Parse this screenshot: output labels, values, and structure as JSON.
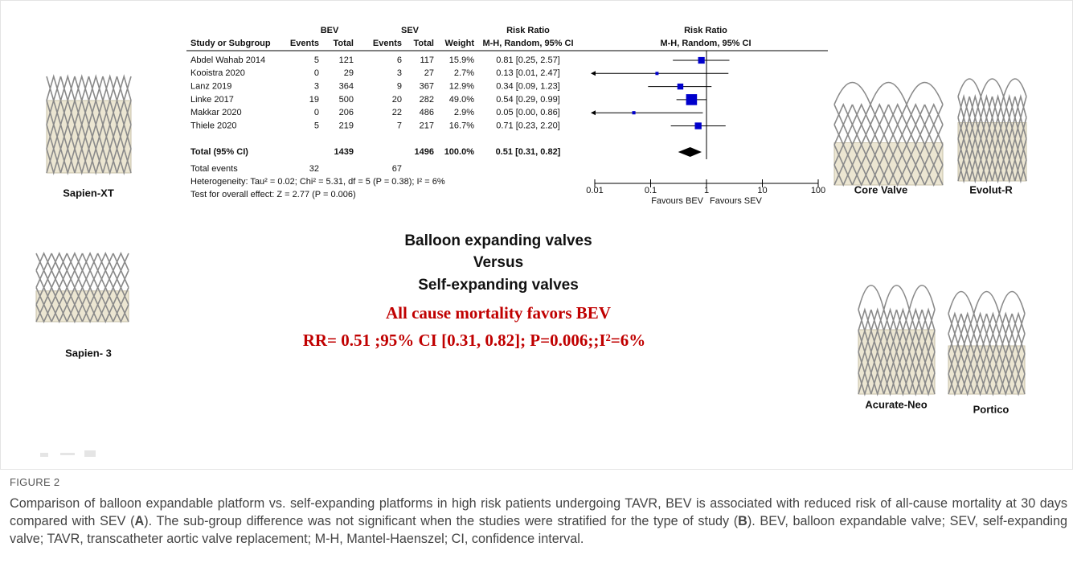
{
  "forest": {
    "headers": {
      "bev": "BEV",
      "sev": "SEV",
      "risk_ratio_left": "Risk Ratio",
      "risk_ratio_right": "Risk Ratio",
      "study": "Study or Subgroup",
      "bev_events": "Events",
      "bev_total": "Total",
      "sev_events": "Events",
      "sev_total": "Total",
      "weight": "Weight",
      "method_left": "M-H, Random, 95% CI",
      "method_right": "M-H, Random, 95% CI"
    },
    "studies": [
      {
        "name": "Abdel Wahab 2014",
        "bev_events": 5,
        "bev_total": 121,
        "sev_events": 6,
        "sev_total": 117,
        "weight": 15.9,
        "weight_label": "15.9%",
        "rr": 0.81,
        "ci_low": 0.25,
        "ci_high": 2.57,
        "rr_label": "0.81 [0.25, 2.57]"
      },
      {
        "name": "Kooistra 2020",
        "bev_events": 0,
        "bev_total": 29,
        "sev_events": 3,
        "sev_total": 27,
        "weight": 2.7,
        "weight_label": "2.7%",
        "rr": 0.13,
        "ci_low": 0.01,
        "ci_high": 2.47,
        "rr_label": "0.13 [0.01, 2.47]"
      },
      {
        "name": "Lanz 2019",
        "bev_events": 3,
        "bev_total": 364,
        "sev_events": 9,
        "sev_total": 367,
        "weight": 12.9,
        "weight_label": "12.9%",
        "rr": 0.34,
        "ci_low": 0.09,
        "ci_high": 1.23,
        "rr_label": "0.34 [0.09, 1.23]"
      },
      {
        "name": "Linke 2017",
        "bev_events": 19,
        "bev_total": 500,
        "sev_events": 20,
        "sev_total": 282,
        "weight": 49.0,
        "weight_label": "49.0%",
        "rr": 0.54,
        "ci_low": 0.29,
        "ci_high": 0.99,
        "rr_label": "0.54 [0.29, 0.99]"
      },
      {
        "name": "Makkar 2020",
        "bev_events": 0,
        "bev_total": 206,
        "sev_events": 22,
        "sev_total": 486,
        "weight": 2.9,
        "weight_label": "2.9%",
        "rr": 0.05,
        "ci_low": 0.0,
        "ci_high": 0.86,
        "rr_label": "0.05 [0.00, 0.86]"
      },
      {
        "name": "Thiele 2020",
        "bev_events": 5,
        "bev_total": 219,
        "sev_events": 7,
        "sev_total": 217,
        "weight": 16.7,
        "weight_label": "16.7%",
        "rr": 0.71,
        "ci_low": 0.23,
        "ci_high": 2.2,
        "rr_label": "0.71 [0.23, 2.20]"
      }
    ],
    "total": {
      "name": "Total (95% CI)",
      "bev_total": 1439,
      "sev_total": 1496,
      "weight_label": "100.0%",
      "rr": 0.51,
      "ci_low": 0.31,
      "ci_high": 0.82,
      "rr_label": "0.51 [0.31, 0.82]"
    },
    "total_events": {
      "name": "Total events",
      "bev_events": 32,
      "sev_events": 67
    },
    "heterogeneity": "Heterogeneity: Tau² = 0.02; Chi² = 5.31, df = 5 (P = 0.38); I² = 6%",
    "overall_test": "Test for overall effect: Z = 2.77 (P = 0.006)",
    "xlim": [
      0.01,
      100
    ],
    "xticks": [
      0.01,
      0.1,
      1,
      10,
      100
    ],
    "log_scale": true,
    "favours_left": "Favours BEV",
    "favours_right": "Favours SEV",
    "marker_color": "#0000cc"
  },
  "summary": {
    "line1": "Balloon expanding valves",
    "line2": "Versus",
    "line3": "Self-expanding valves",
    "conclusion": "All cause mortality favors BEV",
    "statistics": "RR= 0.51 ;95% CI [0.31, 0.82]; P=0.006;;I²=6%"
  },
  "valves": {
    "sapien_xt": "Sapien-XT",
    "sapien_3": "Sapien- 3",
    "core_valve": "Core Valve",
    "evolut_r": "Evolut-R",
    "acurate_neo": "Acurate-Neo",
    "portico": "Portico"
  },
  "caption": {
    "label": "FIGURE 2",
    "parts": [
      "Comparison of balloon expandable platform vs. self-expanding platforms in high risk patients undergoing TAVR, BEV is associated with reduced risk of all-cause mortality at 30 days compared with SEV (",
      "A",
      "). The sub-group difference was not significant when the studies were stratified for the type of study (",
      "B",
      "). BEV, balloon expandable valve; SEV, self-expanding valve; TAVR, transcatheter aortic valve replacement; M-H, Mantel-Haenszel; CI, confidence interval."
    ]
  }
}
